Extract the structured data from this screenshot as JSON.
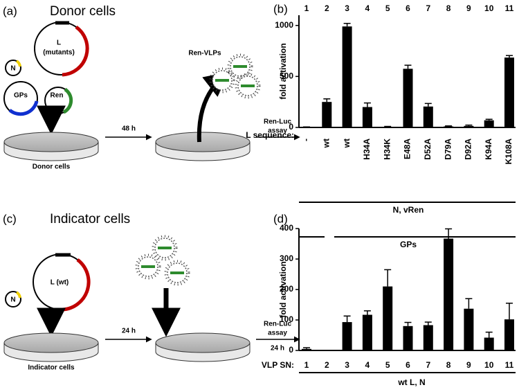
{
  "panels": {
    "a": {
      "label": "(a)",
      "title": "Donor cells",
      "plasmid_n": "N",
      "plasmid_l": "L",
      "plasmid_l_sub": "(mutants)",
      "plasmid_gps": "GPs",
      "plasmid_ren": "Ren",
      "dish_label": "Donor cells",
      "time": "48 h",
      "vlps": "Ren-VLPs",
      "assay_1": "Ren-Luc",
      "assay_2": "assay"
    },
    "c": {
      "label": "(c)",
      "title": "Indicator cells",
      "plasmid_n": "N",
      "plasmid_l": "L (wt)",
      "dish_label": "Indicator cells",
      "time": "24 h",
      "assay_1": "Ren-Luc",
      "assay_2": "assay",
      "assay_time": "24 h"
    }
  },
  "chart_data": [
    {
      "type": "bar",
      "panel_label": "(b)",
      "y_label": "fold activation",
      "categories": [
        "1",
        "2",
        "3",
        "4",
        "5",
        "6",
        "7",
        "8",
        "9",
        "10",
        "11"
      ],
      "row_label": "L sequence:",
      "row_values": [
        "-",
        "wt",
        "wt",
        "H34A",
        "H34K",
        "E48A",
        "D52A",
        "D79A",
        "D92A",
        "K94A",
        "K108A"
      ],
      "values": [
        3,
        250,
        990,
        200,
        5,
        575,
        205,
        10,
        15,
        70,
        685
      ],
      "errors": [
        2,
        30,
        30,
        40,
        5,
        35,
        30,
        5,
        8,
        10,
        20
      ],
      "color": "#000000",
      "ylim": [
        0,
        1100
      ],
      "yticks": [
        0,
        500,
        1000
      ],
      "groups": [
        "N, vRen",
        "GPs"
      ]
    },
    {
      "type": "bar",
      "panel_label": "(d)",
      "y_label": "fold activation",
      "categories": [
        "1",
        "2",
        "3",
        "4",
        "5",
        "6",
        "7",
        "8",
        "9",
        "10",
        "11"
      ],
      "row_label": "VLP SN:",
      "values": [
        5,
        0,
        93,
        117,
        210,
        80,
        83,
        367,
        137,
        42,
        102
      ],
      "errors": [
        4,
        0,
        20,
        13,
        55,
        12,
        10,
        32,
        33,
        18,
        53
      ],
      "color": "#000000",
      "ylim": [
        0,
        400
      ],
      "yticks": [
        0,
        100,
        200,
        300,
        400
      ],
      "groups": [
        "wt L, N"
      ]
    }
  ]
}
